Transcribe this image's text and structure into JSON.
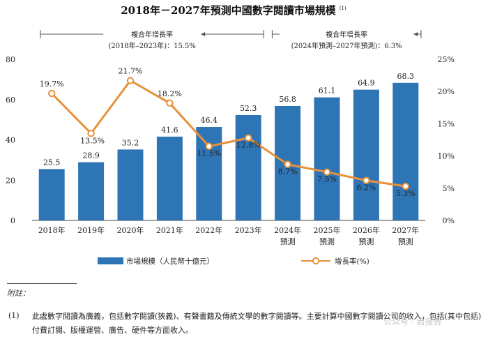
{
  "chart_data": {
    "type": "bar+line",
    "title": "2018年－2027年預測中國數字閱讀市場規模",
    "title_sup": "(1)",
    "categories": [
      [
        "2018年"
      ],
      [
        "2019年"
      ],
      [
        "2020年"
      ],
      [
        "2021年"
      ],
      [
        "2022年"
      ],
      [
        "2023年"
      ],
      [
        "2024年",
        "預測"
      ],
      [
        "2025年",
        "預測"
      ],
      [
        "2026年",
        "預測"
      ],
      [
        "2027年",
        "預測"
      ]
    ],
    "series": [
      {
        "name": "市場規模（人民幣十億元）",
        "type": "bar",
        "axis": "left",
        "color": "#2e75b6",
        "values": [
          25.5,
          28.9,
          35.2,
          41.6,
          46.4,
          52.3,
          56.8,
          61.1,
          64.9,
          68.3
        ],
        "labels": [
          "25.5",
          "28.9",
          "35.2",
          "41.6",
          "46.4",
          "52.3",
          "56.8",
          "61.1",
          "64.9",
          "68.3"
        ]
      },
      {
        "name": "增長率(%)",
        "type": "line",
        "axis": "right",
        "color": "#e8913a",
        "values": [
          19.7,
          13.5,
          21.7,
          18.2,
          11.5,
          12.8,
          8.7,
          7.5,
          6.2,
          5.3
        ],
        "labels": [
          "19.7%",
          "13.5%",
          "21.7%",
          "18.2%",
          "11.5%",
          "12.8%",
          "8.7%",
          "7.5%",
          "6.2%",
          "5.3%"
        ]
      }
    ],
    "y_left": {
      "min": 0,
      "max": 80,
      "ticks": [
        0,
        20,
        40,
        60,
        80
      ],
      "tick_labels": [
        "0",
        "20",
        "40",
        "60",
        "80"
      ]
    },
    "y_right": {
      "min": 0,
      "max": 25,
      "ticks": [
        0,
        5,
        10,
        15,
        20,
        25
      ],
      "tick_labels": [
        "0%",
        "5%",
        "10%",
        "15%",
        "20%",
        "25%"
      ]
    },
    "cagr": [
      {
        "line1": "複合年增長率",
        "line2": "(2018年–2023年)：15.5%",
        "from": 0,
        "to": 5
      },
      {
        "line1": "複合年增長率",
        "line2": "(2024年預測–2027年預測)：6.3%",
        "from": 6,
        "to": 9
      }
    ],
    "legend": {
      "bar_label": "市場規模（人民幣十億元）",
      "line_label": "增長率(%)"
    }
  },
  "notes": {
    "heading": "附註：",
    "items": [
      {
        "number": "(1)",
        "text": "此處數字閱讀為廣義，包括數字閱讀(狹義)、有聲書籍及傳統文學的數字閱讀等。主要計算中國數字閱讀公司的收入，包括(其中包括)付費訂閱、版權運營、廣告、硬件等方面收入。"
      }
    ]
  },
  "watermark": "公众号 · 启报告"
}
